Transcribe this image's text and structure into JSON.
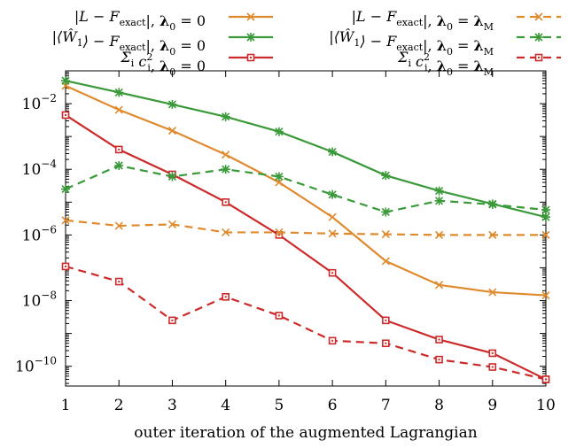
{
  "chart_data": {
    "type": "line",
    "title": "",
    "xlabel": "outer iteration of the augmented Lagrangian",
    "ylabel": "",
    "x": [
      1,
      2,
      3,
      4,
      5,
      6,
      7,
      8,
      9,
      10
    ],
    "xlim": [
      1,
      10
    ],
    "xticks": [
      "1",
      "2",
      "3",
      "4",
      "5",
      "6",
      "7",
      "8",
      "9",
      "10"
    ],
    "ylim": [
      2.5e-11,
      0.1
    ],
    "yscale": "log",
    "yticks": [
      {
        "value": 1e-10,
        "base": "10",
        "exp": "−10"
      },
      {
        "value": 1e-08,
        "base": "10",
        "exp": "−8"
      },
      {
        "value": 1e-06,
        "base": "10",
        "exp": "−6"
      },
      {
        "value": 0.0001,
        "base": "10",
        "exp": "−4"
      },
      {
        "value": 0.01,
        "base": "10",
        "exp": "−2"
      }
    ],
    "grid": false,
    "legend_position": "top",
    "series": [
      {
        "name": "|L − F_exact|, λ0 = 0",
        "color": "#e08a2e",
        "dash": "solid",
        "marker": "x",
        "values": [
          0.035,
          0.0065,
          0.0015,
          0.00028,
          4e-05,
          3.5e-06,
          1.6e-07,
          3e-08,
          1.8e-08,
          1.45e-08
        ]
      },
      {
        "name": "|⟨Ŵ1⟩ − F_exact|, λ0 = 0",
        "color": "#3a9a3a",
        "dash": "solid",
        "marker": "star",
        "values": [
          0.05,
          0.022,
          0.0095,
          0.004,
          0.0014,
          0.00034,
          6.5e-05,
          2.2e-05,
          8.8e-06,
          3.5e-06
        ]
      },
      {
        "name": "Σi ci², λ0 = 0",
        "color": "#cc2a2a",
        "dash": "solid",
        "marker": "square",
        "values": [
          0.0045,
          0.0004,
          7e-05,
          1e-05,
          1e-06,
          7e-08,
          2.5e-09,
          6.5e-10,
          2.5e-10,
          4e-11
        ]
      },
      {
        "name": "|L − F_exact|, λ0 = λM",
        "color": "#e08a2e",
        "dash": "dashed",
        "marker": "x",
        "values": [
          2.8e-06,
          1.9e-06,
          2.1e-06,
          1.2e-06,
          1.2e-06,
          1.1e-06,
          1.05e-06,
          1e-06,
          1e-06,
          1e-06
        ]
      },
      {
        "name": "|⟨Ŵ1⟩ − F_exact|, λ0 = λM",
        "color": "#3a9a3a",
        "dash": "dashed",
        "marker": "star",
        "values": [
          2.5e-05,
          0.00013,
          6e-05,
          0.0001,
          6e-05,
          1.7e-05,
          5e-06,
          1.1e-05,
          8.5e-06,
          5.8e-06
        ]
      },
      {
        "name": "Σi ci², λ0 = λM",
        "color": "#cc2a2a",
        "dash": "dashed",
        "marker": "square",
        "values": [
          1.1e-07,
          3.8e-08,
          2.5e-09,
          1.3e-08,
          3.5e-09,
          6e-10,
          5e-10,
          1.6e-10,
          9.5e-11,
          4e-11
        ]
      }
    ],
    "legend": [
      {
        "series": 0,
        "pre": "|L − F",
        "sub": "exact",
        "post": "|, ",
        "lam": "λ",
        "lamsub": "0",
        "eq": " = 0"
      },
      {
        "series": 3,
        "pre": "|L − F",
        "sub": "exact",
        "post": "|, ",
        "lam": "λ",
        "lamsub": "0",
        "eq": " = ",
        "rhs": "λ",
        "rhssub": "M"
      },
      {
        "series": 1,
        "pre": "|⟨Ŵ",
        "presub": "1",
        "mid": "⟩ − F",
        "sub": "exact",
        "post": "|, ",
        "lam": "λ",
        "lamsub": "0",
        "eq": " = 0"
      },
      {
        "series": 4,
        "pre": "|⟨Ŵ",
        "presub": "1",
        "mid": "⟩ − F",
        "sub": "exact",
        "post": "|, ",
        "lam": "λ",
        "lamsub": "0",
        "eq": " = ",
        "rhs": "λ",
        "rhssub": "M"
      },
      {
        "series": 2,
        "pre": "Σ",
        "presub": "i",
        "mid": " c",
        "midsup": "2",
        "midsub": "i",
        "post": ", ",
        "lam": "λ",
        "lamsub": "0",
        "eq": " = 0"
      },
      {
        "series": 5,
        "pre": "Σ",
        "presub": "i",
        "mid": " c",
        "midsup": "2",
        "midsub": "i",
        "post": ", ",
        "lam": "λ",
        "lamsub": "0",
        "eq": " = ",
        "rhs": "λ",
        "rhssub": "M"
      }
    ]
  }
}
